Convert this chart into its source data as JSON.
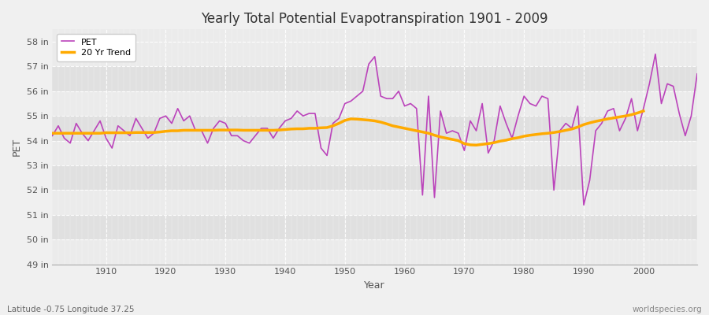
{
  "title": "Yearly Total Potential Evapotranspiration 1901 - 2009",
  "xlabel": "Year",
  "ylabel": "PET",
  "bottom_left_label": "Latitude -0.75 Longitude 37.25",
  "bottom_right_label": "worldspecies.org",
  "pet_color": "#bb44bb",
  "trend_color": "#ffaa00",
  "background_color": "#f0f0f0",
  "plot_bg_light": "#ebebeb",
  "plot_bg_dark": "#e0e0e0",
  "grid_color": "#ffffff",
  "ylim": [
    49.0,
    58.5
  ],
  "xlim": [
    1901,
    2009
  ],
  "yticks": [
    49,
    50,
    51,
    52,
    53,
    54,
    55,
    56,
    57,
    58
  ],
  "ytick_labels": [
    "49 in",
    "50 in",
    "51 in",
    "52 in",
    "53 in",
    "54 in",
    "55 in",
    "56 in",
    "57 in",
    "58 in"
  ],
  "years": [
    1901,
    1902,
    1903,
    1904,
    1905,
    1906,
    1907,
    1908,
    1909,
    1910,
    1911,
    1912,
    1913,
    1914,
    1915,
    1916,
    1917,
    1918,
    1919,
    1920,
    1921,
    1922,
    1923,
    1924,
    1925,
    1926,
    1927,
    1928,
    1929,
    1930,
    1931,
    1932,
    1933,
    1934,
    1935,
    1936,
    1937,
    1938,
    1939,
    1940,
    1941,
    1942,
    1943,
    1944,
    1945,
    1946,
    1947,
    1948,
    1949,
    1950,
    1951,
    1952,
    1953,
    1954,
    1955,
    1956,
    1957,
    1958,
    1959,
    1960,
    1961,
    1962,
    1963,
    1964,
    1965,
    1966,
    1967,
    1968,
    1969,
    1970,
    1971,
    1972,
    1973,
    1974,
    1975,
    1976,
    1977,
    1978,
    1979,
    1980,
    1981,
    1982,
    1983,
    1984,
    1985,
    1986,
    1987,
    1988,
    1989,
    1990,
    1991,
    1992,
    1993,
    1994,
    1995,
    1996,
    1997,
    1998,
    1999,
    2000,
    2001,
    2002,
    2003,
    2004,
    2005,
    2006,
    2007,
    2008,
    2009
  ],
  "pet": [
    54.2,
    54.6,
    54.1,
    53.9,
    54.7,
    54.3,
    54.0,
    54.4,
    54.8,
    54.1,
    53.7,
    54.6,
    54.4,
    54.2,
    54.9,
    54.5,
    54.1,
    54.3,
    54.9,
    55.0,
    54.7,
    55.3,
    54.8,
    55.0,
    54.4,
    54.4,
    53.9,
    54.5,
    54.8,
    54.7,
    54.2,
    54.2,
    54.0,
    53.9,
    54.2,
    54.5,
    54.5,
    54.1,
    54.5,
    54.8,
    54.9,
    55.2,
    55.0,
    55.1,
    55.1,
    53.7,
    53.4,
    54.7,
    54.9,
    55.5,
    55.6,
    55.8,
    56.0,
    57.1,
    57.4,
    55.8,
    55.7,
    55.7,
    56.0,
    55.4,
    55.5,
    55.3,
    51.8,
    55.8,
    51.7,
    55.2,
    54.3,
    54.4,
    54.3,
    53.6,
    54.8,
    54.4,
    55.5,
    53.5,
    54.0,
    55.4,
    54.7,
    54.1,
    55.0,
    55.8,
    55.5,
    55.4,
    55.8,
    55.7,
    52.0,
    54.4,
    54.7,
    54.5,
    55.4,
    51.4,
    52.4,
    54.4,
    54.7,
    55.2,
    55.3,
    54.4,
    54.9,
    55.7,
    54.4,
    55.3,
    56.3,
    57.5,
    55.5,
    56.3,
    56.2,
    55.1,
    54.2,
    55.0,
    56.7
  ],
  "trend_years": [
    1901,
    1902,
    1903,
    1904,
    1905,
    1906,
    1907,
    1908,
    1909,
    1910,
    1911,
    1912,
    1913,
    1914,
    1915,
    1916,
    1917,
    1918,
    1919,
    1920,
    1921,
    1922,
    1923,
    1924,
    1925,
    1926,
    1927,
    1928,
    1929,
    1930,
    1931,
    1932,
    1933,
    1934,
    1935,
    1936,
    1937,
    1938,
    1939,
    1940,
    1941,
    1942,
    1943,
    1944,
    1945,
    1946,
    1947,
    1948,
    1949,
    1950,
    1951,
    1952,
    1953,
    1954,
    1955,
    1956,
    1957,
    1958,
    1959,
    1960,
    1961,
    1962,
    1963,
    1964,
    1965,
    1966,
    1967,
    1968,
    1969,
    1970,
    1971,
    1972,
    1973,
    1974,
    1975,
    1976,
    1977,
    1978,
    1979,
    1980,
    1981,
    1982,
    1983,
    1984,
    1985,
    1986,
    1987,
    1988,
    1989,
    1990,
    1991,
    1992,
    1993,
    1994,
    1995,
    1996,
    1997,
    1998,
    1999,
    2000
  ],
  "trend": [
    54.3,
    54.3,
    54.3,
    54.3,
    54.3,
    54.3,
    54.3,
    54.3,
    54.3,
    54.32,
    54.32,
    54.32,
    54.32,
    54.32,
    54.33,
    54.33,
    54.33,
    54.33,
    54.35,
    54.38,
    54.4,
    54.4,
    54.42,
    54.42,
    54.42,
    54.42,
    54.42,
    54.42,
    54.43,
    54.43,
    54.43,
    54.43,
    54.42,
    54.42,
    54.42,
    54.42,
    54.42,
    54.42,
    54.43,
    54.45,
    54.47,
    54.48,
    54.48,
    54.5,
    54.5,
    54.52,
    54.53,
    54.6,
    54.7,
    54.82,
    54.88,
    54.87,
    54.85,
    54.83,
    54.8,
    54.75,
    54.68,
    54.6,
    54.55,
    54.5,
    54.45,
    54.4,
    54.35,
    54.3,
    54.22,
    54.15,
    54.1,
    54.05,
    54.0,
    53.88,
    53.83,
    53.82,
    53.85,
    53.88,
    53.92,
    53.98,
    54.02,
    54.08,
    54.12,
    54.18,
    54.22,
    54.25,
    54.28,
    54.3,
    54.33,
    54.37,
    54.42,
    54.47,
    54.55,
    54.65,
    54.72,
    54.78,
    54.83,
    54.88,
    54.92,
    54.96,
    55.0,
    55.05,
    55.12,
    55.2
  ]
}
